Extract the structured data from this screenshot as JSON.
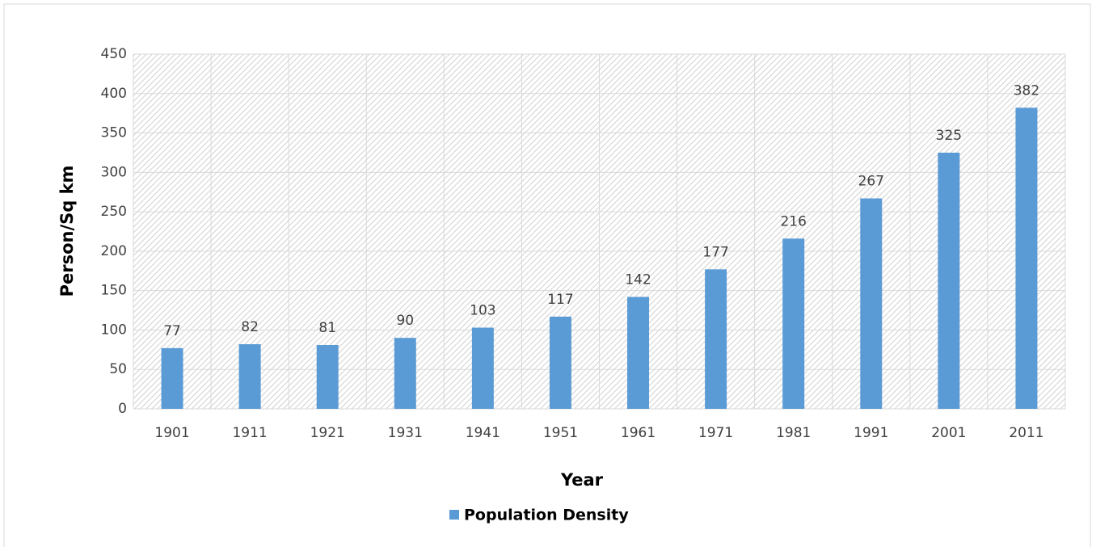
{
  "chart_data": {
    "type": "bar",
    "x_label": "Year",
    "y_label": "Person/Sq km",
    "categories": [
      "1901",
      "1911",
      "1921",
      "1931",
      "1941",
      "1951",
      "1961",
      "1971",
      "1981",
      "1991",
      "2001",
      "2011"
    ],
    "series": [
      {
        "name": "Population Density",
        "color": "#5b9bd5",
        "values": [
          77,
          82,
          81,
          90,
          103,
          117,
          142,
          177,
          216,
          267,
          325,
          382
        ]
      }
    ],
    "ylim": [
      0,
      450
    ],
    "yticks": [
      0,
      50,
      100,
      150,
      200,
      250,
      300,
      350,
      400,
      450
    ],
    "grid": true,
    "legend": "bottom"
  }
}
